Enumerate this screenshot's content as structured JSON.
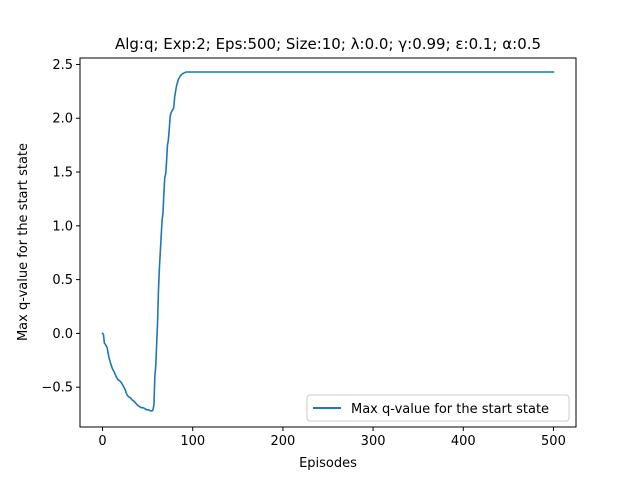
{
  "chart_data": {
    "type": "line",
    "title": "Alg:q; Exp:2; Eps:500; Size:10; λ:0.0; γ:0.99; ε:0.1; α:0.5",
    "xlabel": "Episodes",
    "ylabel": "Max q-value for the start state",
    "xlim": [
      -25,
      525
    ],
    "ylim": [
      -0.87,
      2.56
    ],
    "xticks": [
      0,
      100,
      200,
      300,
      400,
      500
    ],
    "xtick_labels": [
      "0",
      "100",
      "200",
      "300",
      "400",
      "500"
    ],
    "yticks": [
      -0.5,
      0.0,
      0.5,
      1.0,
      1.5,
      2.0,
      2.5
    ],
    "ytick_labels": [
      "−0.5",
      "0.0",
      "0.5",
      "1.0",
      "1.5",
      "2.0",
      "2.5"
    ],
    "grid": false,
    "legend_position": "lower right",
    "series": [
      {
        "name": "Max q-value for the start state",
        "color": "#1f77b4",
        "x": [
          0,
          1,
          2,
          3,
          5,
          7,
          9,
          11,
          13,
          15,
          17,
          19,
          21,
          23,
          25,
          27,
          29,
          31,
          33,
          35,
          37,
          39,
          41,
          43,
          45,
          47,
          49,
          51,
          53,
          55,
          56,
          57,
          58,
          59,
          60,
          61,
          62,
          63,
          64,
          65,
          66,
          67,
          68,
          69,
          70,
          71,
          72,
          73,
          74,
          75,
          76,
          77,
          78,
          79,
          80,
          82,
          84,
          86,
          88,
          90,
          93,
          96,
          100,
          110,
          130,
          200,
          300,
          400,
          500
        ],
        "y": [
          0.0,
          -0.01,
          -0.09,
          -0.1,
          -0.13,
          -0.22,
          -0.28,
          -0.33,
          -0.36,
          -0.4,
          -0.43,
          -0.44,
          -0.46,
          -0.49,
          -0.52,
          -0.57,
          -0.59,
          -0.6,
          -0.62,
          -0.63,
          -0.65,
          -0.67,
          -0.68,
          -0.69,
          -0.69,
          -0.7,
          -0.71,
          -0.71,
          -0.72,
          -0.72,
          -0.71,
          -0.66,
          -0.4,
          -0.3,
          -0.1,
          0.1,
          0.4,
          0.6,
          0.75,
          0.9,
          1.05,
          1.12,
          1.3,
          1.45,
          1.48,
          1.6,
          1.75,
          1.8,
          1.9,
          2.02,
          2.05,
          2.07,
          2.08,
          2.1,
          2.2,
          2.3,
          2.36,
          2.39,
          2.41,
          2.42,
          2.43,
          2.43,
          2.43,
          2.43,
          2.43,
          2.43,
          2.43,
          2.43,
          2.43
        ]
      }
    ]
  }
}
